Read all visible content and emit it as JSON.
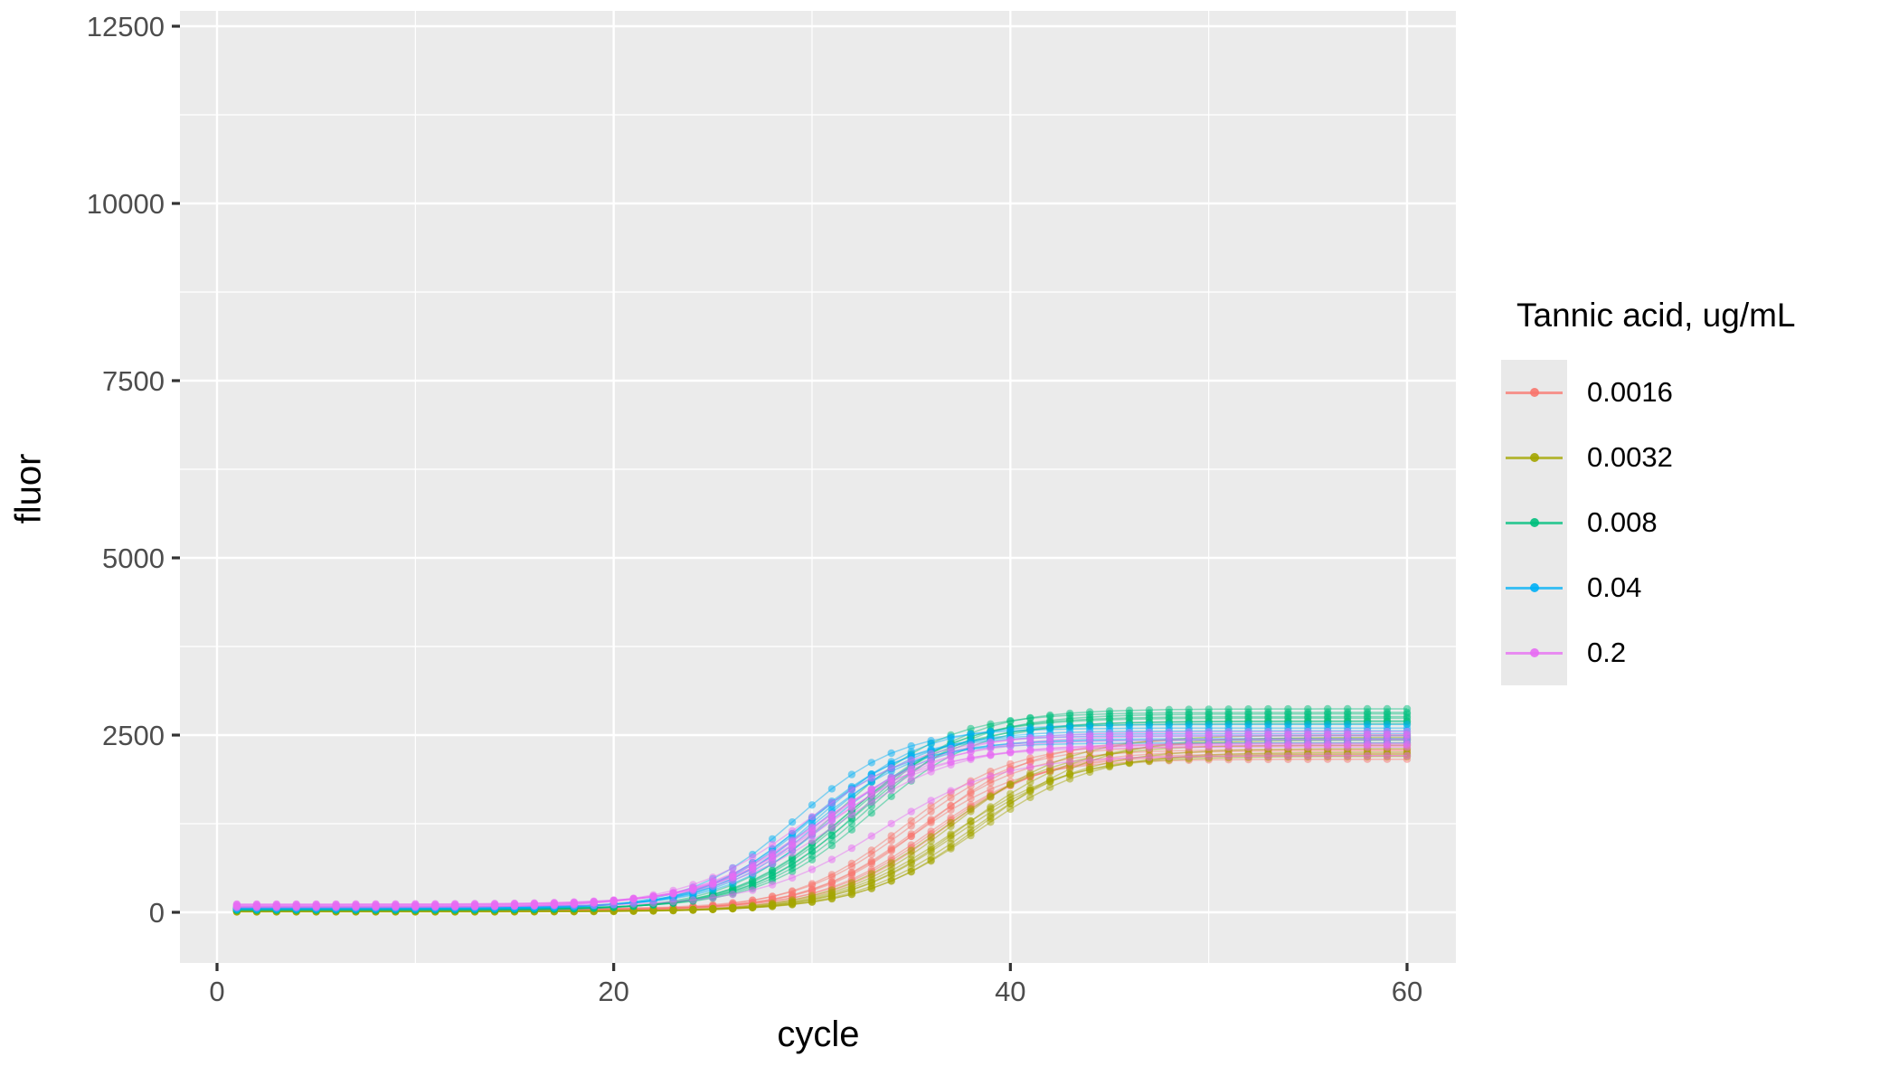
{
  "legend": {
    "title": "Tannic acid, ug/mL",
    "items": [
      {
        "label": "0.0016",
        "color": "#F8766D"
      },
      {
        "label": "0.0032",
        "color": "#A3A500"
      },
      {
        "label": "0.008",
        "color": "#00BF7D"
      },
      {
        "label": "0.04",
        "color": "#00B0F6"
      },
      {
        "label": "0.2",
        "color": "#E76BF3"
      }
    ]
  },
  "chart_data": {
    "type": "line",
    "title": "",
    "xlabel": "cycle",
    "ylabel": "fluor",
    "xlim": [
      0,
      60
    ],
    "ylim": [
      0,
      12500
    ],
    "x_ticks": [
      0,
      20,
      40,
      60
    ],
    "x_minor_ticks": [
      10,
      30,
      50
    ],
    "y_ticks": [
      0,
      2500,
      5000,
      7500,
      10000,
      12500
    ],
    "y_minor_ticks": [
      1250,
      3750,
      6250,
      8750,
      11250
    ],
    "grid": "on",
    "legend_position": "right",
    "panel_bg": "#EBEBEB",
    "grid_color": "#FFFFFF",
    "tick_color": "#333333",
    "tick_label_color": "#4D4D4D",
    "cycle_start": 1,
    "cycle_end": 60,
    "model": "y = base + (plateau - base) / (1 + exp(-k*(cycle - midpoint)))",
    "series": [
      {
        "name": "0.0016",
        "color": "#F8766D",
        "k": 0.36,
        "replicates": [
          {
            "plateau": 2160,
            "midpoint": 35.1,
            "base": 25
          },
          {
            "plateau": 2450,
            "midpoint": 35.8,
            "base": 40
          },
          {
            "plateau": 2300,
            "midpoint": 35.3,
            "base": 32
          },
          {
            "plateau": 2240,
            "midpoint": 36.2,
            "base": 48
          },
          {
            "plateau": 2390,
            "midpoint": 34.6,
            "base": 22
          },
          {
            "plateau": 2210,
            "midpoint": 35.9,
            "base": 36
          },
          {
            "plateau": 2350,
            "midpoint": 34.9,
            "base": 44
          },
          {
            "plateau": 2280,
            "midpoint": 36.5,
            "base": 30
          }
        ]
      },
      {
        "name": "0.0032",
        "color": "#A3A500",
        "k": 0.34,
        "replicates": [
          {
            "plateau": 2200,
            "midpoint": 37.0,
            "base": 6
          },
          {
            "plateau": 2430,
            "midpoint": 37.7,
            "base": 16
          },
          {
            "plateau": 2500,
            "midpoint": 37.2,
            "base": 11
          },
          {
            "plateau": 2260,
            "midpoint": 38.3,
            "base": 20
          },
          {
            "plateau": 2360,
            "midpoint": 36.6,
            "base": 9
          },
          {
            "plateau": 2310,
            "midpoint": 38.0,
            "base": 13
          },
          {
            "plateau": 2470,
            "midpoint": 38.6,
            "base": 18
          },
          {
            "plateau": 2230,
            "midpoint": 37.4,
            "base": 7
          }
        ]
      },
      {
        "name": "0.008",
        "color": "#00BF7D",
        "k": 0.36,
        "replicates": [
          {
            "plateau": 2660,
            "midpoint": 31.6,
            "base": 30
          },
          {
            "plateau": 2870,
            "midpoint": 32.5,
            "base": 46
          },
          {
            "plateau": 2760,
            "midpoint": 32.0,
            "base": 38
          },
          {
            "plateau": 2700,
            "midpoint": 32.9,
            "base": 54
          },
          {
            "plateau": 2820,
            "midpoint": 31.3,
            "base": 26
          },
          {
            "plateau": 2690,
            "midpoint": 32.2,
            "base": 42
          },
          {
            "plateau": 2800,
            "midpoint": 32.7,
            "base": 50
          },
          {
            "plateau": 2740,
            "midpoint": 31.8,
            "base": 34
          }
        ]
      },
      {
        "name": "0.04",
        "color": "#00B0F6",
        "k": 0.38,
        "replicates": [
          {
            "plateau": 2390,
            "midpoint": 29.5,
            "base": 46
          },
          {
            "plateau": 2650,
            "midpoint": 30.4,
            "base": 66
          },
          {
            "plateau": 2520,
            "midpoint": 29.9,
            "base": 56
          },
          {
            "plateau": 2450,
            "midpoint": 30.8,
            "base": 76
          },
          {
            "plateau": 2600,
            "midpoint": 29.2,
            "base": 42
          },
          {
            "plateau": 2430,
            "midpoint": 30.1,
            "base": 62
          },
          {
            "plateau": 2560,
            "midpoint": 30.6,
            "base": 72
          },
          {
            "plateau": 2490,
            "midpoint": 29.7,
            "base": 52
          }
        ]
      },
      {
        "name": "0.2",
        "color": "#E76BF3",
        "k": 0.33,
        "replicates": [
          {
            "plateau": 2330,
            "midpoint": 30.0,
            "base": 72
          },
          {
            "plateau": 2550,
            "midpoint": 30.9,
            "base": 102
          },
          {
            "plateau": 2440,
            "midpoint": 30.4,
            "base": 86
          },
          {
            "plateau": 2380,
            "midpoint": 31.3,
            "base": 116
          },
          {
            "plateau": 2510,
            "midpoint": 29.7,
            "base": 66
          },
          {
            "plateau": 2360,
            "midpoint": 30.6,
            "base": 96
          },
          {
            "plateau": 2490,
            "midpoint": 31.1,
            "base": 112
          },
          {
            "plateau": 2210,
            "midpoint": 33.4,
            "base": 82
          }
        ]
      }
    ],
    "style": {
      "line_alpha": 0.45,
      "line_width": 1.5,
      "point_radius": 4.2,
      "point_alpha": 0.5
    }
  }
}
